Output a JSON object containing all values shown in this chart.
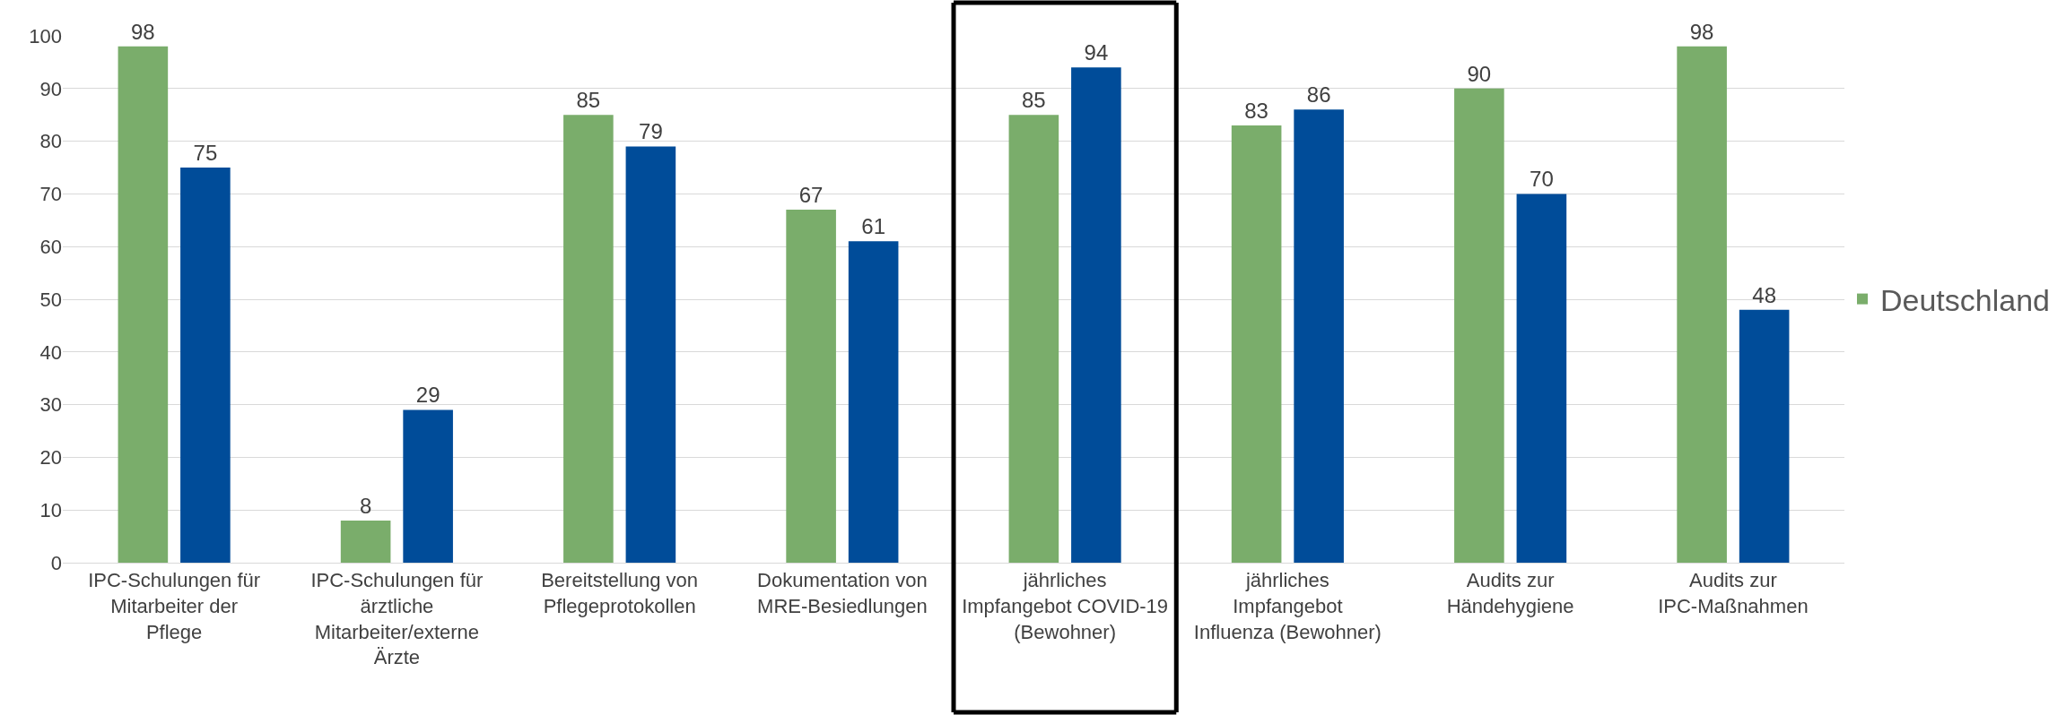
{
  "chart_data": {
    "type": "bar",
    "categories": [
      "IPC-Schulungen für Mitarbeiter der Pflege",
      "IPC-Schulungen für ärztliche Mitarbeiter/externe Ärzte",
      "Bereitstellung von Pflegeprotokollen",
      "Dokumentation von MRE-Besiedlungen",
      "jährliches Impfangebot COVID-19 (Bewohner)",
      "jährliches Impfangebot Influenza (Bewohner)",
      "Audits zur Händehygiene",
      "Audits zur IPC-Maßnahmen"
    ],
    "series": [
      {
        "name": "Deutschland",
        "color": "#7aad6b",
        "values": [
          98,
          8,
          85,
          67,
          85,
          83,
          90,
          98
        ]
      },
      {
        "color": "#004c99",
        "values": [
          75,
          29,
          79,
          61,
          94,
          86,
          70,
          48
        ]
      }
    ],
    "ylim": [
      0,
      100
    ],
    "yticks": [
      0,
      10,
      20,
      30,
      40,
      50,
      60,
      70,
      80,
      90,
      100
    ],
    "grid": "y",
    "legend": "right",
    "data_labels": true
  }
}
